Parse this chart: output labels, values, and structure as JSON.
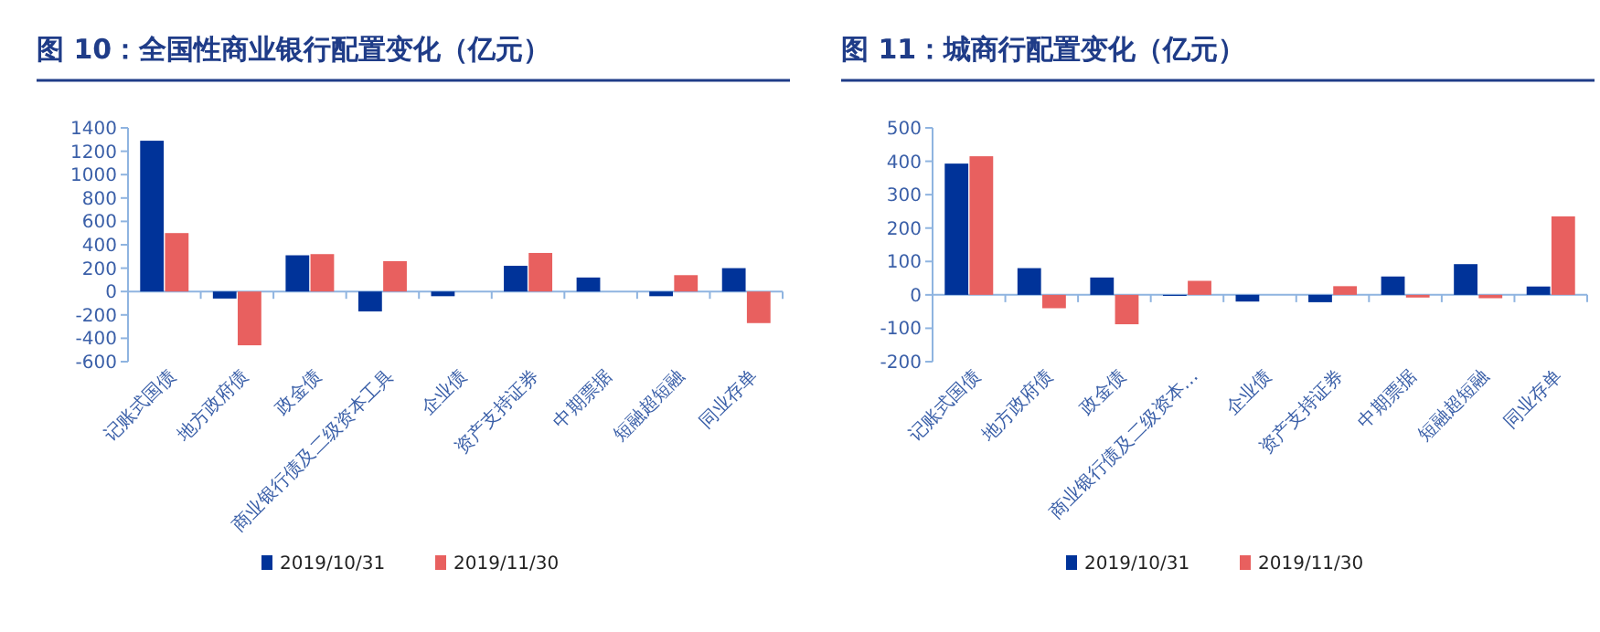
{
  "chart_data": [
    {
      "type": "bar",
      "title": "图 10：全国性商业银行配置变化（亿元）",
      "categories": [
        "记账式国债",
        "地方政府债",
        "政金债",
        "商业银行债及二级资本工具",
        "企业债",
        "资产支持证券",
        "中期票据",
        "短融超短融",
        "同业存单"
      ],
      "series": [
        {
          "name": "2019/10/31",
          "color": "#003399",
          "values": [
            1290,
            -60,
            310,
            -170,
            -40,
            220,
            120,
            -40,
            200
          ]
        },
        {
          "name": "2019/11/30",
          "color": "#e8605f",
          "values": [
            500,
            -460,
            320,
            260,
            null,
            330,
            null,
            140,
            -270
          ]
        }
      ],
      "ref_lines": [
        {
          "axis": "y",
          "value": 0,
          "color": "#8fb4e0"
        }
      ],
      "ylim": [
        -600,
        1400
      ],
      "yticks": [
        -600,
        -400,
        -200,
        0,
        200,
        400,
        600,
        800,
        1000,
        1200,
        1400
      ],
      "grid": false,
      "legend": "bottom"
    },
    {
      "type": "bar",
      "title": "图 11：城商行配置变化（亿元）",
      "categories": [
        "记账式国债",
        "地方政府债",
        "政金债",
        "商业银行债及二级资本…",
        "企业债",
        "资产支持证券",
        "中期票据",
        "短融超短融",
        "同业存单"
      ],
      "series": [
        {
          "name": "2019/10/31",
          "color": "#003399",
          "values": [
            393,
            80,
            52,
            -3,
            -20,
            -22,
            55,
            92,
            25
          ]
        },
        {
          "name": "2019/11/30",
          "color": "#e8605f",
          "values": [
            415,
            -40,
            -88,
            42,
            null,
            26,
            -8,
            -10,
            235
          ]
        }
      ],
      "ref_lines": [
        {
          "axis": "y",
          "value": 0,
          "color": "#8fb4e0"
        }
      ],
      "ylim": [
        -200,
        500
      ],
      "yticks": [
        -200,
        -100,
        0,
        100,
        200,
        300,
        400,
        500
      ],
      "grid": false,
      "legend": "bottom"
    }
  ]
}
